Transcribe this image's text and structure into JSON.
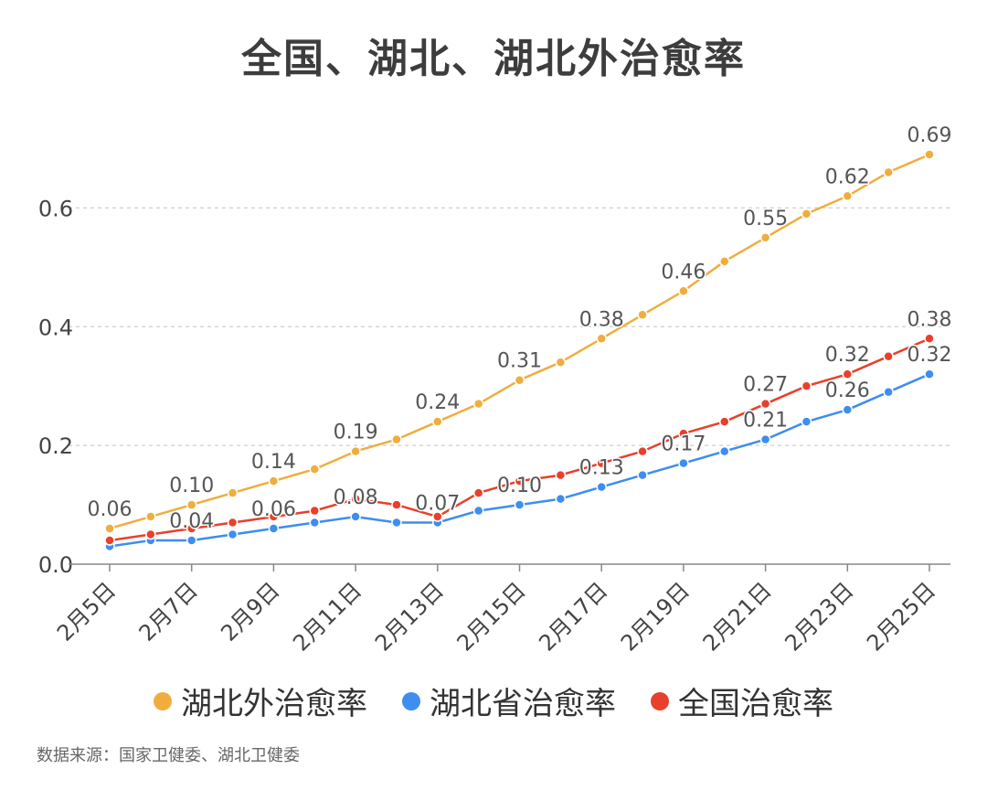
{
  "chart_data": {
    "type": "line",
    "title": "全国、湖北、湖北外治愈率",
    "x": [
      "2月5日",
      "2月6日",
      "2月7日",
      "2月8日",
      "2月9日",
      "2月10日",
      "2月11日",
      "2月12日",
      "2月13日",
      "2月14日",
      "2月15日",
      "2月16日",
      "2月17日",
      "2月18日",
      "2月19日",
      "2月20日",
      "2月21日",
      "2月22日",
      "2月23日",
      "2月24日",
      "2月25日"
    ],
    "x_tick_labels": [
      "2月5日",
      "2月7日",
      "2月9日",
      "2月11日",
      "2月13日",
      "2月15日",
      "2月17日",
      "2月19日",
      "2月21日",
      "2月23日",
      "2月25日"
    ],
    "y_ticks": [
      "0.0",
      "0.2",
      "0.4",
      "0.6"
    ],
    "ylim": [
      0,
      0.7
    ],
    "grid": "horizontal dashed",
    "legend_position": "bottom",
    "series": [
      {
        "name": "湖北外治愈率",
        "color": "#f0ad3e",
        "values": [
          0.06,
          0.08,
          0.1,
          0.12,
          0.14,
          0.16,
          0.19,
          0.21,
          0.24,
          0.27,
          0.31,
          0.34,
          0.38,
          0.42,
          0.46,
          0.51,
          0.55,
          0.59,
          0.62,
          0.66,
          0.69
        ],
        "labels": [
          "0.06",
          "",
          "0.10",
          "",
          "0.14",
          "",
          "0.19",
          "",
          "0.24",
          "",
          "0.31",
          "",
          "0.38",
          "",
          "0.46",
          "",
          "0.55",
          "",
          "0.62",
          "",
          "0.69"
        ]
      },
      {
        "name": "湖北省治愈率",
        "color": "#3d8ef0",
        "values": [
          0.03,
          0.04,
          0.04,
          0.05,
          0.06,
          0.07,
          0.08,
          0.07,
          0.07,
          0.09,
          0.1,
          0.11,
          0.13,
          0.15,
          0.17,
          0.19,
          0.21,
          0.24,
          0.26,
          0.29,
          0.32
        ],
        "labels": [
          "",
          "",
          "0.04",
          "",
          "0.06",
          "",
          "0.08",
          "",
          "0.07",
          "",
          "0.10",
          "",
          "0.13",
          "",
          "0.17",
          "",
          "0.21",
          "",
          "0.26",
          "",
          "0.32"
        ]
      },
      {
        "name": "全国治愈率",
        "color": "#e8402a",
        "values": [
          0.04,
          0.05,
          0.06,
          0.07,
          0.08,
          0.09,
          0.11,
          0.1,
          0.08,
          0.12,
          0.14,
          0.15,
          0.17,
          0.19,
          0.22,
          0.24,
          0.27,
          0.3,
          0.32,
          0.35,
          0.38
        ],
        "labels": [
          "",
          "",
          "",
          "",
          "",
          "",
          "",
          "",
          "",
          "",
          "",
          "",
          "",
          "",
          "",
          "",
          "0.27",
          "",
          "0.32",
          "",
          "0.38"
        ]
      }
    ]
  },
  "source_text": "数据来源：国家卫健委、湖北卫健委"
}
